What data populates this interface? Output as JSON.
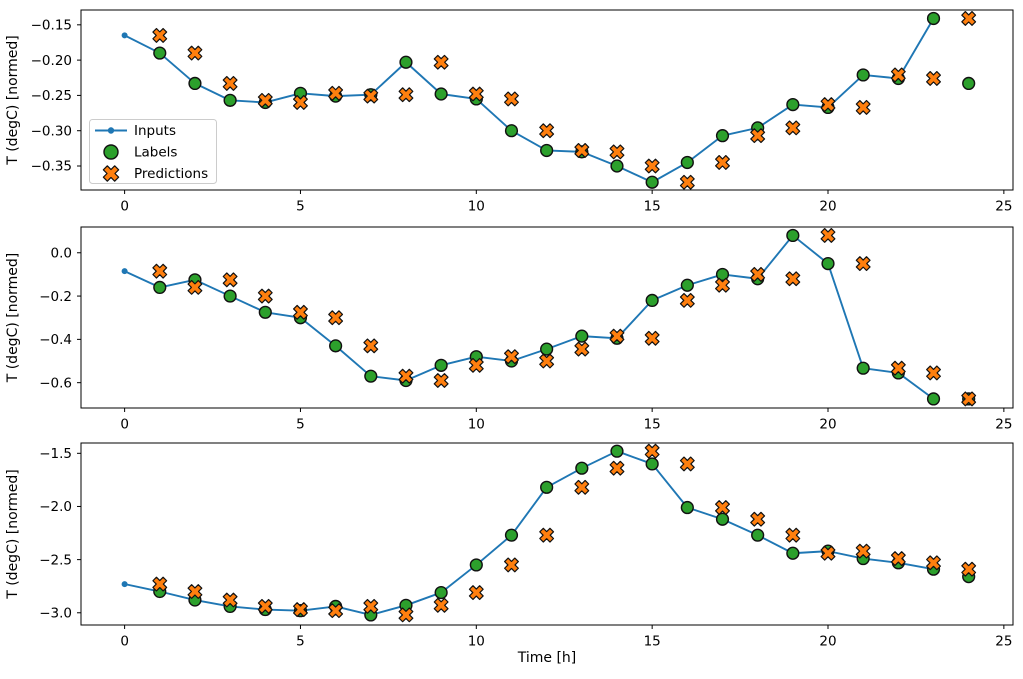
{
  "figure": {
    "background": "#ffffff",
    "xlabel": "Time [h]",
    "x_ticks": [
      0,
      5,
      10,
      15,
      20,
      25
    ],
    "x_tick_labels": [
      "0",
      "5",
      "10",
      "15",
      "20",
      "25"
    ],
    "colors": {
      "inputs_line": "#1f77b4",
      "labels_marker": "#2ca02c",
      "predictions_marker": "#ff7f0e",
      "marker_edge": "#111111",
      "spine": "#000000",
      "tick_text": "#000000",
      "legend_border": "#cccccc",
      "legend_background": "rgba(255,255,255,0.8)"
    },
    "legend": {
      "items": [
        {
          "label": "Inputs",
          "marker": "line-dot"
        },
        {
          "label": "Labels",
          "marker": "circle"
        },
        {
          "label": "Predictions",
          "marker": "x-filled"
        }
      ]
    }
  },
  "chart_data": [
    {
      "type": "line",
      "ylabel": "T (degC) [normed]",
      "xlim": [
        -1.24,
        25.26
      ],
      "ylim": [
        -0.384,
        -0.129
      ],
      "grid": false,
      "y_ticks": [
        -0.15,
        -0.2,
        -0.25,
        -0.3,
        -0.35
      ],
      "y_tick_labels": [
        "−0.15",
        "−0.20",
        "−0.25",
        "−0.30",
        "−0.35"
      ],
      "series": [
        {
          "name": "Inputs",
          "style": "line-dot",
          "color": "#1f77b4",
          "x": [
            0,
            1,
            2,
            3,
            4,
            5,
            6,
            7,
            8,
            9,
            10,
            11,
            12,
            13,
            14,
            15,
            16,
            17,
            18,
            19,
            20,
            21,
            22,
            23
          ],
          "y": [
            -0.165,
            -0.19,
            -0.233,
            -0.257,
            -0.26,
            -0.247,
            -0.251,
            -0.249,
            -0.203,
            -0.248,
            -0.255,
            -0.3,
            -0.328,
            -0.33,
            -0.35,
            -0.373,
            -0.345,
            -0.307,
            -0.296,
            -0.263,
            -0.267,
            -0.221,
            -0.226,
            -0.141
          ]
        },
        {
          "name": "Labels",
          "style": "scatter-circle",
          "color": "#2ca02c",
          "x": [
            1,
            2,
            3,
            4,
            5,
            6,
            7,
            8,
            9,
            10,
            11,
            12,
            13,
            14,
            15,
            16,
            17,
            18,
            19,
            20,
            21,
            22,
            23,
            24
          ],
          "y": [
            -0.19,
            -0.233,
            -0.257,
            -0.26,
            -0.247,
            -0.251,
            -0.249,
            -0.203,
            -0.248,
            -0.255,
            -0.3,
            -0.328,
            -0.33,
            -0.35,
            -0.373,
            -0.345,
            -0.307,
            -0.296,
            -0.263,
            -0.267,
            -0.221,
            -0.226,
            -0.141,
            -0.233
          ]
        },
        {
          "name": "Predictions",
          "style": "scatter-x",
          "color": "#ff7f0e",
          "x": [
            1,
            2,
            3,
            4,
            5,
            6,
            7,
            8,
            9,
            10,
            11,
            12,
            13,
            14,
            15,
            16,
            17,
            18,
            19,
            20,
            21,
            22,
            23,
            24
          ],
          "y": [
            -0.165,
            -0.19,
            -0.233,
            -0.257,
            -0.26,
            -0.247,
            -0.251,
            -0.249,
            -0.203,
            -0.248,
            -0.255,
            -0.3,
            -0.328,
            -0.33,
            -0.35,
            -0.373,
            -0.345,
            -0.307,
            -0.296,
            -0.263,
            -0.267,
            -0.221,
            -0.226,
            -0.141
          ]
        }
      ]
    },
    {
      "type": "line",
      "ylabel": "T (degC) [normed]",
      "xlim": [
        -1.24,
        25.26
      ],
      "ylim": [
        -0.717,
        0.119
      ],
      "grid": false,
      "y_ticks": [
        0.0,
        -0.2,
        -0.4,
        -0.6
      ],
      "y_tick_labels": [
        "0.0",
        "−0.2",
        "−0.4",
        "−0.6"
      ],
      "series": [
        {
          "name": "Inputs",
          "style": "line-dot",
          "color": "#1f77b4",
          "x": [
            0,
            1,
            2,
            3,
            4,
            5,
            6,
            7,
            8,
            9,
            10,
            11,
            12,
            13,
            14,
            15,
            16,
            17,
            18,
            19,
            20,
            21,
            22,
            23
          ],
          "y": [
            -0.085,
            -0.16,
            -0.125,
            -0.2,
            -0.275,
            -0.3,
            -0.43,
            -0.57,
            -0.59,
            -0.52,
            -0.48,
            -0.5,
            -0.445,
            -0.385,
            -0.395,
            -0.22,
            -0.15,
            -0.1,
            -0.12,
            0.08,
            -0.05,
            -0.533,
            -0.555,
            -0.675
          ]
        },
        {
          "name": "Labels",
          "style": "scatter-circle",
          "color": "#2ca02c",
          "x": [
            1,
            2,
            3,
            4,
            5,
            6,
            7,
            8,
            9,
            10,
            11,
            12,
            13,
            14,
            15,
            16,
            17,
            18,
            19,
            20,
            21,
            22,
            23,
            24
          ],
          "y": [
            -0.16,
            -0.125,
            -0.2,
            -0.275,
            -0.3,
            -0.43,
            -0.57,
            -0.59,
            -0.52,
            -0.48,
            -0.5,
            -0.445,
            -0.385,
            -0.395,
            -0.22,
            -0.15,
            -0.1,
            -0.12,
            0.08,
            -0.05,
            -0.533,
            -0.555,
            -0.675,
            -0.675
          ]
        },
        {
          "name": "Predictions",
          "style": "scatter-x",
          "color": "#ff7f0e",
          "x": [
            1,
            2,
            3,
            4,
            5,
            6,
            7,
            8,
            9,
            10,
            11,
            12,
            13,
            14,
            15,
            16,
            17,
            18,
            19,
            20,
            21,
            22,
            23,
            24
          ],
          "y": [
            -0.085,
            -0.16,
            -0.125,
            -0.2,
            -0.275,
            -0.3,
            -0.43,
            -0.57,
            -0.59,
            -0.52,
            -0.48,
            -0.5,
            -0.445,
            -0.385,
            -0.395,
            -0.22,
            -0.15,
            -0.1,
            -0.12,
            0.08,
            -0.05,
            -0.533,
            -0.555,
            -0.675
          ]
        }
      ]
    },
    {
      "type": "line",
      "ylabel": "T (degC) [normed]",
      "xlim": [
        -1.24,
        25.26
      ],
      "ylim": [
        -3.115,
        -1.403
      ],
      "grid": false,
      "y_ticks": [
        -1.5,
        -2.0,
        -2.5,
        -3.0
      ],
      "y_tick_labels": [
        "−1.5",
        "−2.0",
        "−2.5",
        "−3.0"
      ],
      "series": [
        {
          "name": "Inputs",
          "style": "line-dot",
          "color": "#1f77b4",
          "x": [
            0,
            1,
            2,
            3,
            4,
            5,
            6,
            7,
            8,
            9,
            10,
            11,
            12,
            13,
            14,
            15,
            16,
            17,
            18,
            19,
            20,
            21,
            22,
            23
          ],
          "y": [
            -2.73,
            -2.8,
            -2.88,
            -2.94,
            -2.97,
            -2.98,
            -2.94,
            -3.02,
            -2.93,
            -2.81,
            -2.55,
            -2.27,
            -1.82,
            -1.64,
            -1.48,
            -1.6,
            -2.01,
            -2.12,
            -2.27,
            -2.44,
            -2.42,
            -2.49,
            -2.53,
            -2.59
          ]
        },
        {
          "name": "Labels",
          "style": "scatter-circle",
          "color": "#2ca02c",
          "x": [
            1,
            2,
            3,
            4,
            5,
            6,
            7,
            8,
            9,
            10,
            11,
            12,
            13,
            14,
            15,
            16,
            17,
            18,
            19,
            20,
            21,
            22,
            23,
            24
          ],
          "y": [
            -2.8,
            -2.88,
            -2.94,
            -2.97,
            -2.98,
            -2.94,
            -3.02,
            -2.93,
            -2.81,
            -2.55,
            -2.27,
            -1.82,
            -1.64,
            -1.48,
            -1.6,
            -2.01,
            -2.12,
            -2.27,
            -2.44,
            -2.42,
            -2.49,
            -2.53,
            -2.59,
            -2.66
          ]
        },
        {
          "name": "Predictions",
          "style": "scatter-x",
          "color": "#ff7f0e",
          "x": [
            1,
            2,
            3,
            4,
            5,
            6,
            7,
            8,
            9,
            10,
            11,
            12,
            13,
            14,
            15,
            16,
            17,
            18,
            19,
            20,
            21,
            22,
            23,
            24
          ],
          "y": [
            -2.73,
            -2.8,
            -2.88,
            -2.94,
            -2.97,
            -2.98,
            -2.94,
            -3.02,
            -2.93,
            -2.81,
            -2.55,
            -2.27,
            -1.82,
            -1.64,
            -1.48,
            -1.6,
            -2.01,
            -2.12,
            -2.27,
            -2.44,
            -2.42,
            -2.49,
            -2.53,
            -2.59
          ]
        }
      ]
    }
  ]
}
